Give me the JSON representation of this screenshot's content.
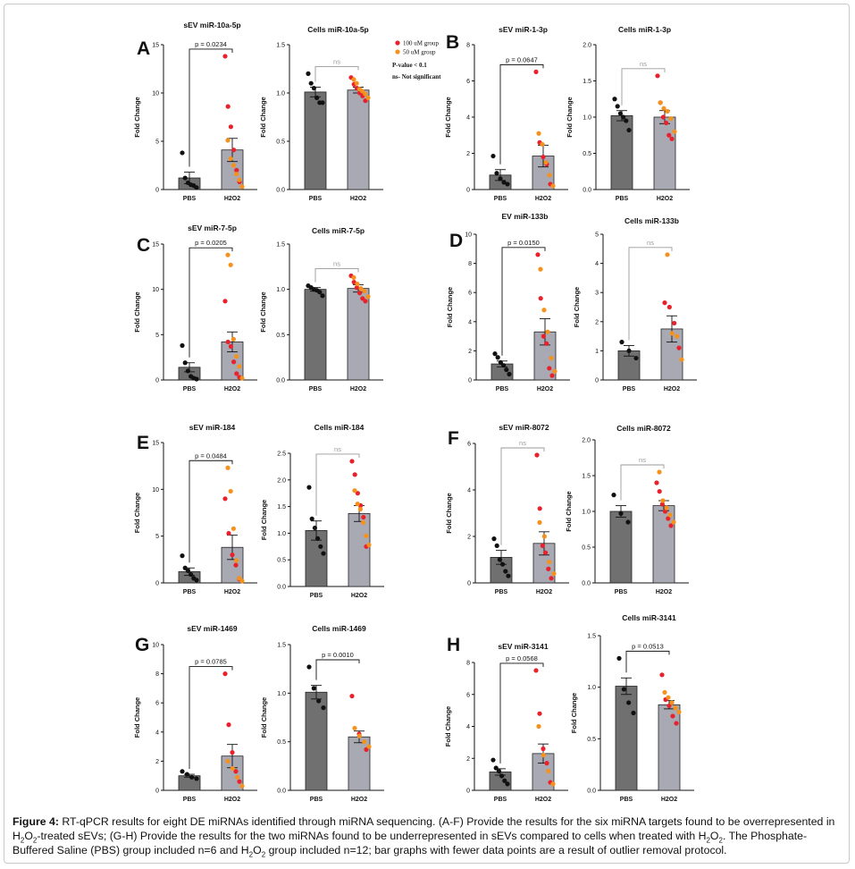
{
  "caption": {
    "label": "Figure 4:",
    "text_1": " RT-qPCR results for eight DE miRNAs identified through miRNA sequencing. (A-F) Provide the results for the six miRNA targets found to be overrepresented in H",
    "sub_1": "2",
    "text_2": "O",
    "sub_2": "2",
    "text_3": "-treated sEVs; (G-H) Provide the results for the two miRNAs found to be underrepresented in sEVs compared to cells when treated with H",
    "sub_3": "2",
    "text_4": "O",
    "sub_4": "2",
    "text_5": ". The Phosphate-Buffered Saline (PBS) group included n=6 and H",
    "sub_5": "2",
    "text_6": "O",
    "sub_6": "2",
    "text_7": " group included n=12; bar graphs with fewer data points are a result of outlier removal protocol."
  },
  "legend": {
    "items": [
      {
        "label": "100 uM group",
        "color": "#e8222c"
      },
      {
        "label": "50 uM group",
        "color": "#f5921e"
      }
    ],
    "pvalue_text": "P-value < 0.1",
    "ns_text": "ns- Not significant"
  },
  "colors": {
    "bar_pbs": "#707070",
    "bar_h2o2": "#a9a9b4",
    "dot_pbs": "#111111",
    "dot_100": "#e8222c",
    "dot_50": "#f5921e",
    "ns_bracket": "#9a9a9a"
  },
  "chart_data": [
    {
      "panel": "A",
      "type": "bar",
      "title": "sEV miR-10a-5p",
      "ylabel": "Fold Change",
      "categories": [
        "PBS",
        "H2O2"
      ],
      "values": [
        1.2,
        4.1
      ],
      "sem": [
        0.6,
        1.2
      ],
      "ylim": [
        0,
        15
      ],
      "yticks": [
        0,
        5,
        10,
        15
      ],
      "significance": "p = 0.0234",
      "points": {
        "PBS": [
          3.8,
          1.2,
          0.7,
          0.5,
          0.4,
          0.2
        ],
        "H2O2_100uM": [
          13.8,
          8.6,
          6.5,
          4.1,
          2.0,
          0.8
        ],
        "H2O2_50uM": [
          5.1,
          3.2,
          2.5,
          1.6,
          1.0,
          0.3
        ]
      }
    },
    {
      "panel": "A",
      "type": "bar",
      "title": "Cells miR-10a-5p",
      "ylabel": "Fold Change",
      "categories": [
        "PBS",
        "H2O2"
      ],
      "values": [
        1.01,
        1.03
      ],
      "sem": [
        0.05,
        0.03
      ],
      "ylim": [
        0,
        1.5
      ],
      "yticks": [
        0.0,
        0.5,
        1.0,
        1.5
      ],
      "significance": "ns",
      "points": {
        "PBS": [
          1.2,
          1.1,
          1.05,
          0.95,
          0.9,
          0.9
        ],
        "H2O2_100uM": [
          1.16,
          1.09,
          1.05,
          1.0,
          0.97,
          0.92
        ],
        "H2O2_50uM": [
          1.14,
          1.1,
          1.04,
          1.02,
          0.99,
          0.95
        ]
      }
    },
    {
      "panel": "B",
      "type": "bar",
      "title": "sEV miR-1-3p",
      "ylabel": "Fold Change",
      "categories": [
        "PBS",
        "H2O2"
      ],
      "values": [
        0.8,
        1.85
      ],
      "sem": [
        0.3,
        0.6
      ],
      "ylim": [
        0,
        8
      ],
      "yticks": [
        0,
        2,
        4,
        6,
        8
      ],
      "significance": "p = 0.0647",
      "points": {
        "PBS": [
          1.85,
          0.9,
          0.6,
          0.4,
          0.3
        ],
        "H2O2_100uM": [
          6.5,
          2.6,
          1.8,
          1.4,
          0.3
        ],
        "H2O2_50uM": [
          3.1,
          2.5,
          1.5,
          0.8,
          0.2
        ]
      }
    },
    {
      "panel": "B",
      "type": "bar",
      "title": "Cells miR-1-3p",
      "ylabel": "Fold Change",
      "categories": [
        "PBS",
        "H2O2"
      ],
      "values": [
        1.02,
        1.0
      ],
      "sem": [
        0.07,
        0.09
      ],
      "ylim": [
        0,
        2.0
      ],
      "yticks": [
        0.0,
        0.5,
        1.0,
        1.5,
        2.0
      ],
      "significance": "ns",
      "points": {
        "PBS": [
          1.25,
          1.15,
          1.05,
          1.0,
          0.95,
          0.82
        ],
        "H2O2_100uM": [
          1.57,
          1.2,
          1.0,
          0.92,
          0.75,
          0.7
        ],
        "H2O2_50uM": [
          1.2,
          1.12,
          1.08,
          0.98,
          0.8
        ]
      }
    },
    {
      "panel": "C",
      "type": "bar",
      "title": "sEV miR-7-5p",
      "ylabel": "Fold Change",
      "categories": [
        "PBS",
        "H2O2"
      ],
      "values": [
        1.4,
        4.2
      ],
      "sem": [
        0.5,
        1.1
      ],
      "ylim": [
        0,
        15
      ],
      "yticks": [
        0,
        5,
        10,
        15
      ],
      "significance": "p = 0.0205",
      "points": {
        "PBS": [
          3.8,
          1.9,
          1.0,
          0.4,
          0.2,
          0.1
        ],
        "H2O2_100uM": [
          8.7,
          4.2,
          3.7,
          2.0,
          0.7,
          0.3
        ],
        "H2O2_50uM": [
          13.8,
          12.7,
          4.5,
          2.6,
          1.5,
          0.2
        ]
      }
    },
    {
      "panel": "C",
      "type": "bar",
      "title": "Cells miR-7-5p",
      "ylabel": "Fold Change",
      "categories": [
        "PBS",
        "H2O2"
      ],
      "values": [
        1.0,
        1.01
      ],
      "sem": [
        0.02,
        0.04
      ],
      "ylim": [
        0,
        1.5
      ],
      "yticks": [
        0.0,
        0.5,
        1.0,
        1.5
      ],
      "significance": "ns",
      "points": {
        "PBS": [
          1.04,
          1.02,
          1.0,
          0.99,
          0.97,
          0.93
        ],
        "H2O2_100uM": [
          1.15,
          1.08,
          1.02,
          0.96,
          0.9,
          0.87
        ],
        "H2O2_50uM": [
          1.13,
          1.06,
          1.01,
          0.98,
          0.92
        ]
      }
    },
    {
      "panel": "D",
      "type": "bar",
      "title": "EV miR-133b",
      "ylabel": "Fold Change",
      "categories": [
        "PBS",
        "H2O2"
      ],
      "values": [
        1.1,
        3.3
      ],
      "sem": [
        0.2,
        0.9
      ],
      "ylim": [
        0,
        10
      ],
      "yticks": [
        0,
        2,
        4,
        6,
        8,
        10
      ],
      "significance": "p = 0.0150",
      "points": {
        "PBS": [
          1.8,
          1.55,
          1.2,
          1.0,
          0.7,
          0.4
        ],
        "H2O2_100uM": [
          8.6,
          5.6,
          3.0,
          2.5,
          0.8,
          0.3
        ],
        "H2O2_50uM": [
          7.6,
          4.8,
          3.3,
          1.5,
          0.6
        ]
      }
    },
    {
      "panel": "D",
      "type": "bar",
      "title": "Cells miR-133b",
      "ylabel": "Fold Change",
      "categories": [
        "PBS",
        "H2O2"
      ],
      "values": [
        1.0,
        1.75
      ],
      "sem": [
        0.18,
        0.45
      ],
      "ylim": [
        0,
        5
      ],
      "yticks": [
        0,
        1,
        2,
        3,
        4,
        5
      ],
      "significance": "ns",
      "points": {
        "PBS": [
          1.3,
          1.0,
          0.75
        ],
        "H2O2_100uM": [
          2.65,
          2.5,
          1.95,
          1.1
        ],
        "H2O2_50uM": [
          4.3,
          1.6,
          1.5,
          0.7
        ]
      }
    },
    {
      "panel": "E",
      "type": "bar",
      "title": "sEV miR-184",
      "ylabel": "Fold Change",
      "categories": [
        "PBS",
        "H2O2"
      ],
      "values": [
        1.2,
        3.8
      ],
      "sem": [
        0.4,
        1.3
      ],
      "ylim": [
        0,
        15
      ],
      "yticks": [
        0,
        5,
        10,
        15
      ],
      "significance": "p = 0.0484",
      "points": {
        "PBS": [
          2.9,
          1.6,
          1.3,
          0.9,
          0.5,
          0.3
        ],
        "H2O2_100uM": [
          9.0,
          5.3,
          3.0,
          1.9,
          0.4
        ],
        "H2O2_50uM": [
          12.3,
          9.8,
          5.8,
          2.4,
          0.5,
          0.2
        ]
      }
    },
    {
      "panel": "E",
      "type": "bar",
      "title": "Cells miR-184",
      "ylabel": "Fold Change",
      "categories": [
        "PBS",
        "H2O2"
      ],
      "values": [
        1.05,
        1.37
      ],
      "sem": [
        0.18,
        0.15
      ],
      "ylim": [
        0,
        2.5
      ],
      "yticks": [
        0.0,
        0.5,
        1.0,
        1.5,
        2.0,
        2.5
      ],
      "significance": "ns",
      "points": {
        "PBS": [
          1.86,
          1.27,
          1.1,
          0.9,
          0.75,
          0.62
        ],
        "H2O2_100uM": [
          2.35,
          2.1,
          1.75,
          1.52,
          1.3,
          0.75
        ],
        "H2O2_50uM": [
          1.8,
          1.55,
          1.45,
          1.2,
          0.95,
          0.78
        ]
      }
    },
    {
      "panel": "F",
      "type": "bar",
      "title": "sEV miR-8072",
      "ylabel": "Fold Change",
      "categories": [
        "PBS",
        "H2O2"
      ],
      "values": [
        1.1,
        1.7
      ],
      "sem": [
        0.3,
        0.5
      ],
      "ylim": [
        0,
        6
      ],
      "yticks": [
        0,
        2,
        4,
        6
      ],
      "significance": "ns",
      "points": {
        "PBS": [
          1.9,
          1.6,
          1.0,
          0.8,
          0.5,
          0.3
        ],
        "H2O2_100uM": [
          5.5,
          3.2,
          1.6,
          1.3,
          0.6,
          0.2
        ],
        "H2O2_50uM": [
          2.6,
          2.0,
          0.9,
          0.4
        ]
      }
    },
    {
      "panel": "F",
      "type": "bar",
      "title": "Cells miR-8072",
      "ylabel": "Fold Change",
      "categories": [
        "PBS",
        "H2O2"
      ],
      "values": [
        1.0,
        1.08
      ],
      "sem": [
        0.08,
        0.07
      ],
      "ylim": [
        0,
        2.0
      ],
      "yticks": [
        0.0,
        0.5,
        1.0,
        1.5,
        2.0
      ],
      "significance": "ns",
      "points": {
        "PBS": [
          1.23,
          0.97,
          0.85
        ],
        "H2O2_100uM": [
          1.4,
          1.28,
          1.1,
          1.0,
          0.9,
          0.8
        ],
        "H2O2_50uM": [
          1.55,
          1.15,
          1.05,
          0.95,
          0.85
        ]
      }
    },
    {
      "panel": "G",
      "type": "bar",
      "title": "sEV miR-1469",
      "ylabel": "Fold Change",
      "categories": [
        "PBS",
        "H2O2"
      ],
      "values": [
        1.0,
        2.35
      ],
      "sem": [
        0.1,
        0.8
      ],
      "ylim": [
        0,
        10
      ],
      "yticks": [
        0,
        2,
        4,
        6,
        8,
        10
      ],
      "significance": "p = 0.0785",
      "points": {
        "PBS": [
          1.3,
          1.1,
          0.9,
          0.8
        ],
        "H2O2_100uM": [
          8.0,
          4.5,
          2.6,
          1.3,
          0.6
        ],
        "H2O2_50uM": [
          2.0,
          1.5,
          0.9,
          0.3
        ]
      }
    },
    {
      "panel": "G",
      "type": "bar",
      "title": "Cells miR-1469",
      "ylabel": "Fold Change",
      "categories": [
        "PBS",
        "H2O2"
      ],
      "values": [
        1.01,
        0.55
      ],
      "sem": [
        0.07,
        0.06
      ],
      "ylim": [
        0,
        1.5
      ],
      "yticks": [
        0.0,
        0.5,
        1.0,
        1.5
      ],
      "significance": "p = 0.0010",
      "points": {
        "PBS": [
          1.27,
          1.05,
          0.92,
          0.85
        ],
        "H2O2_100uM": [
          0.97,
          0.58,
          0.42
        ],
        "H2O2_50uM": [
          0.64,
          0.56,
          0.5,
          0.45
        ]
      }
    },
    {
      "panel": "H",
      "type": "bar",
      "title": "sEV miR-3141",
      "ylabel": "Fold Change",
      "categories": [
        "PBS",
        "H2O2"
      ],
      "values": [
        1.15,
        2.3
      ],
      "sem": [
        0.2,
        0.6
      ],
      "ylim": [
        0,
        8
      ],
      "yticks": [
        0,
        2,
        4,
        6,
        8
      ],
      "significance": "p = 0.0568",
      "points": {
        "PBS": [
          1.9,
          1.4,
          1.2,
          0.9,
          0.6,
          0.4
        ],
        "H2O2_100uM": [
          7.5,
          4.8,
          2.6,
          1.7,
          0.5
        ],
        "H2O2_50uM": [
          4.0,
          2.2,
          1.2,
          0.4
        ]
      }
    },
    {
      "panel": "H",
      "type": "bar",
      "title": "Cells miR-3141",
      "ylabel": "Fold Change",
      "categories": [
        "PBS",
        "H2O2"
      ],
      "values": [
        1.01,
        0.83
      ],
      "sem": [
        0.08,
        0.04
      ],
      "ylim": [
        0,
        1.5
      ],
      "yticks": [
        0.0,
        0.5,
        1.0,
        1.5
      ],
      "significance": "p = 0.0513",
      "points": {
        "PBS": [
          1.28,
          0.98,
          0.85,
          0.75
        ],
        "H2O2_100uM": [
          1.12,
          0.88,
          0.82,
          0.72,
          0.65
        ],
        "H2O2_50uM": [
          0.95,
          0.9,
          0.85,
          0.8,
          0.76
        ]
      }
    }
  ]
}
